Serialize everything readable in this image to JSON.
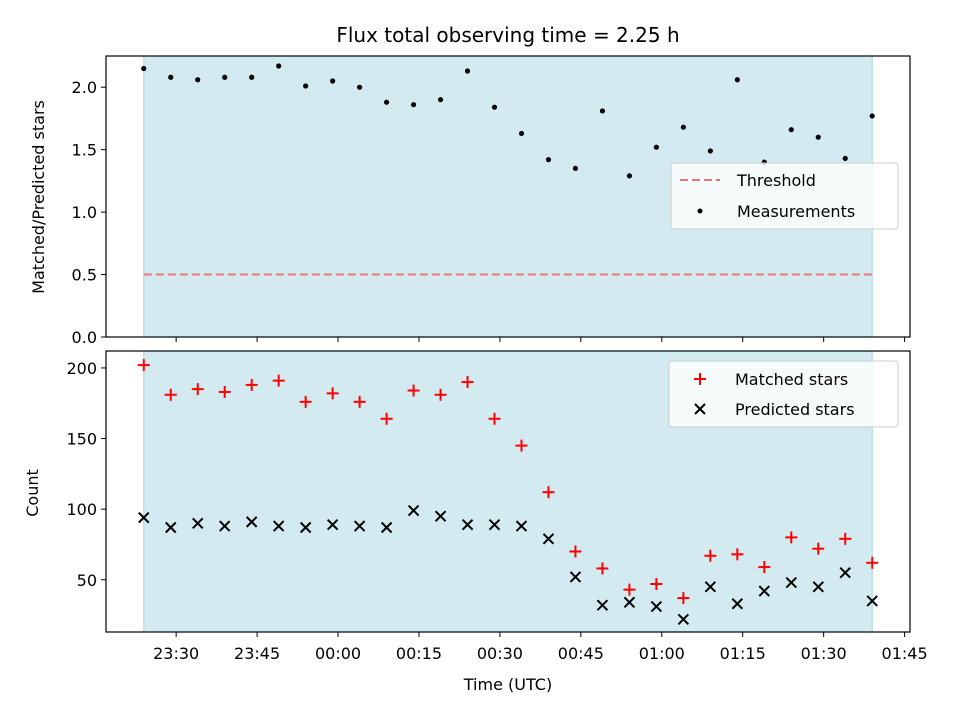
{
  "chart_data": [
    {
      "type": "scatter",
      "title": "Flux total observing time = 2.25 h",
      "ylabel": "Matched/Predicted stars",
      "xlabel": "",
      "ylim": [
        0,
        2.25
      ],
      "yticks": [
        "0.0",
        "0.5",
        "1.0",
        "1.5",
        "2.0"
      ],
      "grid": false,
      "legend_position": "center-right",
      "shaded_span": {
        "from": "23:24",
        "to": "01:39",
        "color": "#d3eaf0"
      },
      "threshold": {
        "name": "Threshold",
        "value": 0.5,
        "color": "#ef7575",
        "style": "dashed",
        "from": "23:24",
        "to": "01:39"
      },
      "series": [
        {
          "name": "Measurements",
          "marker": "dot",
          "color": "#000000",
          "x": [
            "23:24",
            "23:29",
            "23:34",
            "23:39",
            "23:44",
            "23:49",
            "23:54",
            "23:59",
            "00:04",
            "00:09",
            "00:14",
            "00:19",
            "00:24",
            "00:29",
            "00:34",
            "00:39",
            "00:44",
            "00:49",
            "00:54",
            "00:59",
            "01:04",
            "01:09",
            "01:14",
            "01:19",
            "01:24",
            "01:29",
            "01:34",
            "01:39"
          ],
          "y": [
            2.15,
            2.08,
            2.06,
            2.08,
            2.08,
            2.17,
            2.01,
            2.05,
            2.0,
            1.88,
            1.86,
            1.9,
            2.13,
            1.84,
            1.63,
            1.42,
            1.35,
            1.81,
            1.29,
            1.52,
            1.68,
            1.49,
            2.06,
            1.4,
            1.66,
            1.6,
            1.43,
            1.77
          ]
        }
      ]
    },
    {
      "type": "scatter",
      "title": "",
      "ylabel": "Count",
      "xlabel": "Time (UTC)",
      "ylim": [
        13,
        212
      ],
      "yticks": [
        "50",
        "100",
        "150",
        "200"
      ],
      "xticks": [
        "23:30",
        "23:45",
        "00:00",
        "00:15",
        "00:30",
        "00:45",
        "01:00",
        "01:15",
        "01:30",
        "01:45"
      ],
      "xlim": [
        "23:17",
        "01:46"
      ],
      "grid": false,
      "legend_position": "top-right",
      "shaded_span": {
        "from": "23:24",
        "to": "01:39",
        "color": "#d3eaf0"
      },
      "series": [
        {
          "name": "Matched stars",
          "marker": "plus",
          "color": "#ff0000",
          "x": [
            "23:24",
            "23:29",
            "23:34",
            "23:39",
            "23:44",
            "23:49",
            "23:54",
            "23:59",
            "00:04",
            "00:09",
            "00:14",
            "00:19",
            "00:24",
            "00:29",
            "00:34",
            "00:39",
            "00:44",
            "00:49",
            "00:54",
            "00:59",
            "01:04",
            "01:09",
            "01:14",
            "01:19",
            "01:24",
            "01:29",
            "01:34",
            "01:39"
          ],
          "y": [
            202,
            181,
            185,
            183,
            188,
            191,
            176,
            182,
            176,
            164,
            184,
            181,
            190,
            164,
            145,
            112,
            70,
            58,
            43,
            47,
            37,
            67,
            68,
            59,
            80,
            72,
            79,
            62
          ]
        },
        {
          "name": "Predicted stars",
          "marker": "x",
          "color": "#000000",
          "x": [
            "23:24",
            "23:29",
            "23:34",
            "23:39",
            "23:44",
            "23:49",
            "23:54",
            "23:59",
            "00:04",
            "00:09",
            "00:14",
            "00:19",
            "00:24",
            "00:29",
            "00:34",
            "00:39",
            "00:44",
            "00:49",
            "00:54",
            "00:59",
            "01:04",
            "01:09",
            "01:14",
            "01:19",
            "01:24",
            "01:29",
            "01:34",
            "01:39"
          ],
          "y": [
            94,
            87,
            90,
            88,
            91,
            88,
            87,
            89,
            88,
            87,
            99,
            95,
            89,
            89,
            88,
            79,
            52,
            32,
            34,
            31,
            22,
            45,
            33,
            42,
            48,
            45,
            55,
            35
          ]
        }
      ]
    }
  ]
}
